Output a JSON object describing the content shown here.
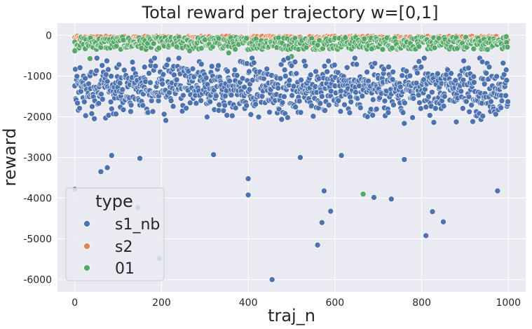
{
  "chart_data": {
    "type": "scatter",
    "title": "Total reward per trajectory w=[0,1]",
    "xlabel": "traj_n",
    "ylabel": "reward",
    "xlim": [
      -40,
      1040
    ],
    "ylim": [
      -6300,
      300
    ],
    "xticks": [
      0,
      200,
      400,
      600,
      800,
      1000
    ],
    "yticks": [
      0,
      -1000,
      -2000,
      -3000,
      -4000,
      -5000,
      -6000
    ],
    "grid": true,
    "legend": {
      "title": "type",
      "placement": "lower-left",
      "entries": [
        "s1_nb",
        "s2",
        "01"
      ]
    },
    "series": [
      {
        "name": "s1_nb",
        "color": "#4c72b0",
        "n": 1000,
        "typical_range": [
          -2500,
          -600
        ],
        "center": -1300,
        "outliers": [
          [
            0,
            -3780
          ],
          [
            60,
            -3350
          ],
          [
            75,
            -3250
          ],
          [
            85,
            -2950
          ],
          [
            145,
            -4230
          ],
          [
            150,
            -3020
          ],
          [
            195,
            -5480
          ],
          [
            320,
            -2930
          ],
          [
            400,
            -3520
          ],
          [
            400,
            -3920
          ],
          [
            455,
            -6000
          ],
          [
            520,
            -3000
          ],
          [
            560,
            -5150
          ],
          [
            570,
            -4600
          ],
          [
            575,
            -3820
          ],
          [
            590,
            -4320
          ],
          [
            615,
            -2950
          ],
          [
            690,
            -3980
          ],
          [
            730,
            -4020
          ],
          [
            760,
            -3050
          ],
          [
            810,
            -4920
          ],
          [
            825,
            -4330
          ],
          [
            850,
            -4580
          ],
          [
            975,
            -3820
          ]
        ]
      },
      {
        "name": "s2",
        "color": "#dd8452",
        "n": 1000,
        "typical_range": [
          -120,
          -20
        ],
        "outliers": [
          [
            540,
            -230
          ],
          [
            770,
            -210
          ],
          [
            825,
            -160
          ],
          [
            985,
            -150
          ]
        ]
      },
      {
        "name": "01",
        "color": "#55a868",
        "n": 1000,
        "typical_range": [
          -350,
          -40
        ],
        "outliers": [
          [
            0,
            -380
          ],
          [
            35,
            -570
          ],
          [
            95,
            -1220
          ],
          [
            235,
            -280
          ],
          [
            265,
            -380
          ],
          [
            355,
            -430
          ],
          [
            500,
            -520
          ],
          [
            560,
            -240
          ],
          [
            665,
            -3900
          ],
          [
            685,
            -330
          ],
          [
            995,
            -30
          ]
        ]
      }
    ]
  }
}
